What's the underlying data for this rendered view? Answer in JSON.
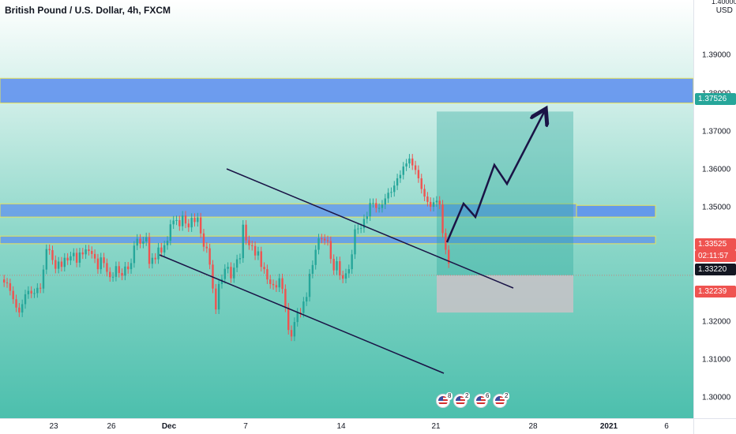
{
  "header": {
    "title": "British Pound / U.S. Dollar, 4h, FXCM"
  },
  "price_axis": {
    "currency": "USD",
    "top_label": "1.40000",
    "ticks": [
      "1.39000",
      "1.38000",
      "1.37000",
      "1.36000",
      "1.35000",
      "1.34000",
      "1.32000",
      "1.31000",
      "1.30000"
    ]
  },
  "time_axis": {
    "ticks": [
      "23",
      "26",
      "Dec",
      "7",
      "14",
      "21",
      "28",
      "2021",
      "6"
    ]
  },
  "price_tags": [
    {
      "label": "1.37526",
      "color": "#26a69a",
      "value": 1.37526
    },
    {
      "label": "1.33525",
      "color": "#ef5350",
      "value": 1.33525
    },
    {
      "label": "02:11:57",
      "color": "#ef5350",
      "value": 1.3323
    },
    {
      "label": "1.33220",
      "color": "#131722",
      "value": 1.3322
    },
    {
      "label": "1.32239",
      "color": "#ef5350",
      "value": 1.32239
    }
  ],
  "events": [
    {
      "icon": "us-flag-icon",
      "count": "8"
    },
    {
      "icon": "us-flag-icon",
      "count": "2"
    },
    {
      "icon": "us-flag-icon",
      "count": "6"
    },
    {
      "icon": "us-flag-icon",
      "count": "2"
    }
  ],
  "colors": {
    "up": "#26a69a",
    "down": "#ef5350",
    "zone": "#5b8def",
    "zone_border": "#e8e35a",
    "background_top": "#ffffff",
    "background_bottom": "#4dbfae",
    "trendline": "#1a1446"
  },
  "chart_data": {
    "type": "candlestick",
    "symbol": "British Pound / U.S. Dollar",
    "interval": "4h",
    "source": "FXCM",
    "ylim": [
      1.2946,
      1.4046
    ],
    "x_ticks": [
      "23",
      "26",
      "Dec",
      "7",
      "14",
      "21",
      "28",
      "2021",
      "6"
    ],
    "y_ticks": [
      1.3,
      1.31,
      1.32,
      1.34,
      1.35,
      1.36,
      1.37,
      1.38,
      1.39
    ],
    "candles_close": [
      1.3303,
      1.3301,
      1.3281,
      1.3259,
      1.3237,
      1.3224,
      1.3246,
      1.3272,
      1.3281,
      1.3274,
      1.3275,
      1.3289,
      1.3287,
      1.3337,
      1.3391,
      1.3388,
      1.3362,
      1.3339,
      1.3358,
      1.3344,
      1.3368,
      1.3361,
      1.3372,
      1.3381,
      1.3355,
      1.3382,
      1.3377,
      1.339,
      1.3386,
      1.3378,
      1.3366,
      1.3338,
      1.3369,
      1.3354,
      1.3331,
      1.3317,
      1.3318,
      1.3346,
      1.3328,
      1.3321,
      1.3345,
      1.3338,
      1.3354,
      1.34,
      1.3418,
      1.3405,
      1.3411,
      1.3422,
      1.3352,
      1.3368,
      1.3364,
      1.3395,
      1.3382,
      1.3401,
      1.3413,
      1.3456,
      1.3466,
      1.3467,
      1.3451,
      1.3479,
      1.3458,
      1.3448,
      1.3473,
      1.3462,
      1.3474,
      1.3432,
      1.3397,
      1.3393,
      1.335,
      1.3287,
      1.3232,
      1.3299,
      1.3312,
      1.3339,
      1.3344,
      1.3314,
      1.3342,
      1.3364,
      1.3367,
      1.3455,
      1.3414,
      1.3401,
      1.3399,
      1.3374,
      1.3385,
      1.3344,
      1.3338,
      1.3311,
      1.3299,
      1.3296,
      1.329,
      1.3314,
      1.3286,
      1.3237,
      1.3178,
      1.3161,
      1.3199,
      1.3224,
      1.3223,
      1.3253,
      1.3265,
      1.3326,
      1.3349,
      1.3389,
      1.3419,
      1.3418,
      1.3414,
      1.3412,
      1.3365,
      1.3335,
      1.3359,
      1.3322,
      1.3313,
      1.3327,
      1.3338,
      1.3377,
      1.3443,
      1.3445,
      1.3446,
      1.347,
      1.3477,
      1.3512,
      1.3512,
      1.3499,
      1.3499,
      1.3508,
      1.3524,
      1.3539,
      1.3541,
      1.3558,
      1.3577,
      1.3586,
      1.3608,
      1.3616,
      1.3629,
      1.3611,
      1.3599,
      1.3577,
      1.3549,
      1.3529,
      1.3515,
      1.3502,
      1.3514,
      1.3518,
      1.3508,
      1.3433,
      1.3389,
      1.3353
    ],
    "annotations": {
      "resistance_zones": [
        {
          "low": 1.3775,
          "high": 1.384
        },
        {
          "low": 1.3475,
          "high": 1.351
        },
        {
          "low": 1.3405,
          "high": 1.3425
        }
      ],
      "long_position": {
        "entry": 1.3322,
        "target": 1.37526,
        "stop": 1.32239
      },
      "last_price": 1.3322,
      "countdown": "02:11:57"
    }
  }
}
